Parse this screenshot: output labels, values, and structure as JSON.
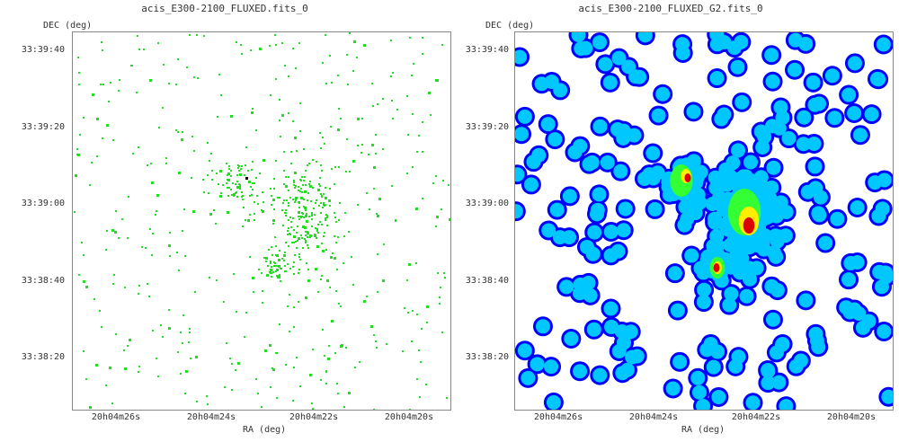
{
  "panels": [
    {
      "title": "acis_E300-2100_FLUXED.fits_0",
      "ylabel": "DEC (deg)",
      "xlabel": "RA (deg)",
      "yticks": [
        "33:39:40",
        "33:39:20",
        "33:39:00",
        "33:38:40",
        "33:38:20"
      ],
      "xticks": [
        "20h04m26s",
        "20h04m24s",
        "20h04m22s",
        "20h04m20s"
      ],
      "image": "raw-photon-events"
    },
    {
      "title": "acis_E300-2100_FLUXED_G2.fits_0",
      "ylabel": "DEC (deg)",
      "xlabel": "RA (deg)",
      "yticks": [
        "33:39:40",
        "33:39:20",
        "33:39:00",
        "33:38:40",
        "33:38:20"
      ],
      "xticks": [
        "20h04m26s",
        "20h04m24s",
        "20h04m22s",
        "20h04m20s"
      ],
      "image": "gaussian-smoothed-heatmap"
    }
  ],
  "colors": {
    "raw_pixel": "#22dd22",
    "raw_hot": "#000000",
    "heat_low": "#0000ff",
    "heat_mid1": "#00c8ff",
    "heat_mid2": "#33ff33",
    "heat_mid3": "#ffee00",
    "heat_high": "#dd0000"
  }
}
